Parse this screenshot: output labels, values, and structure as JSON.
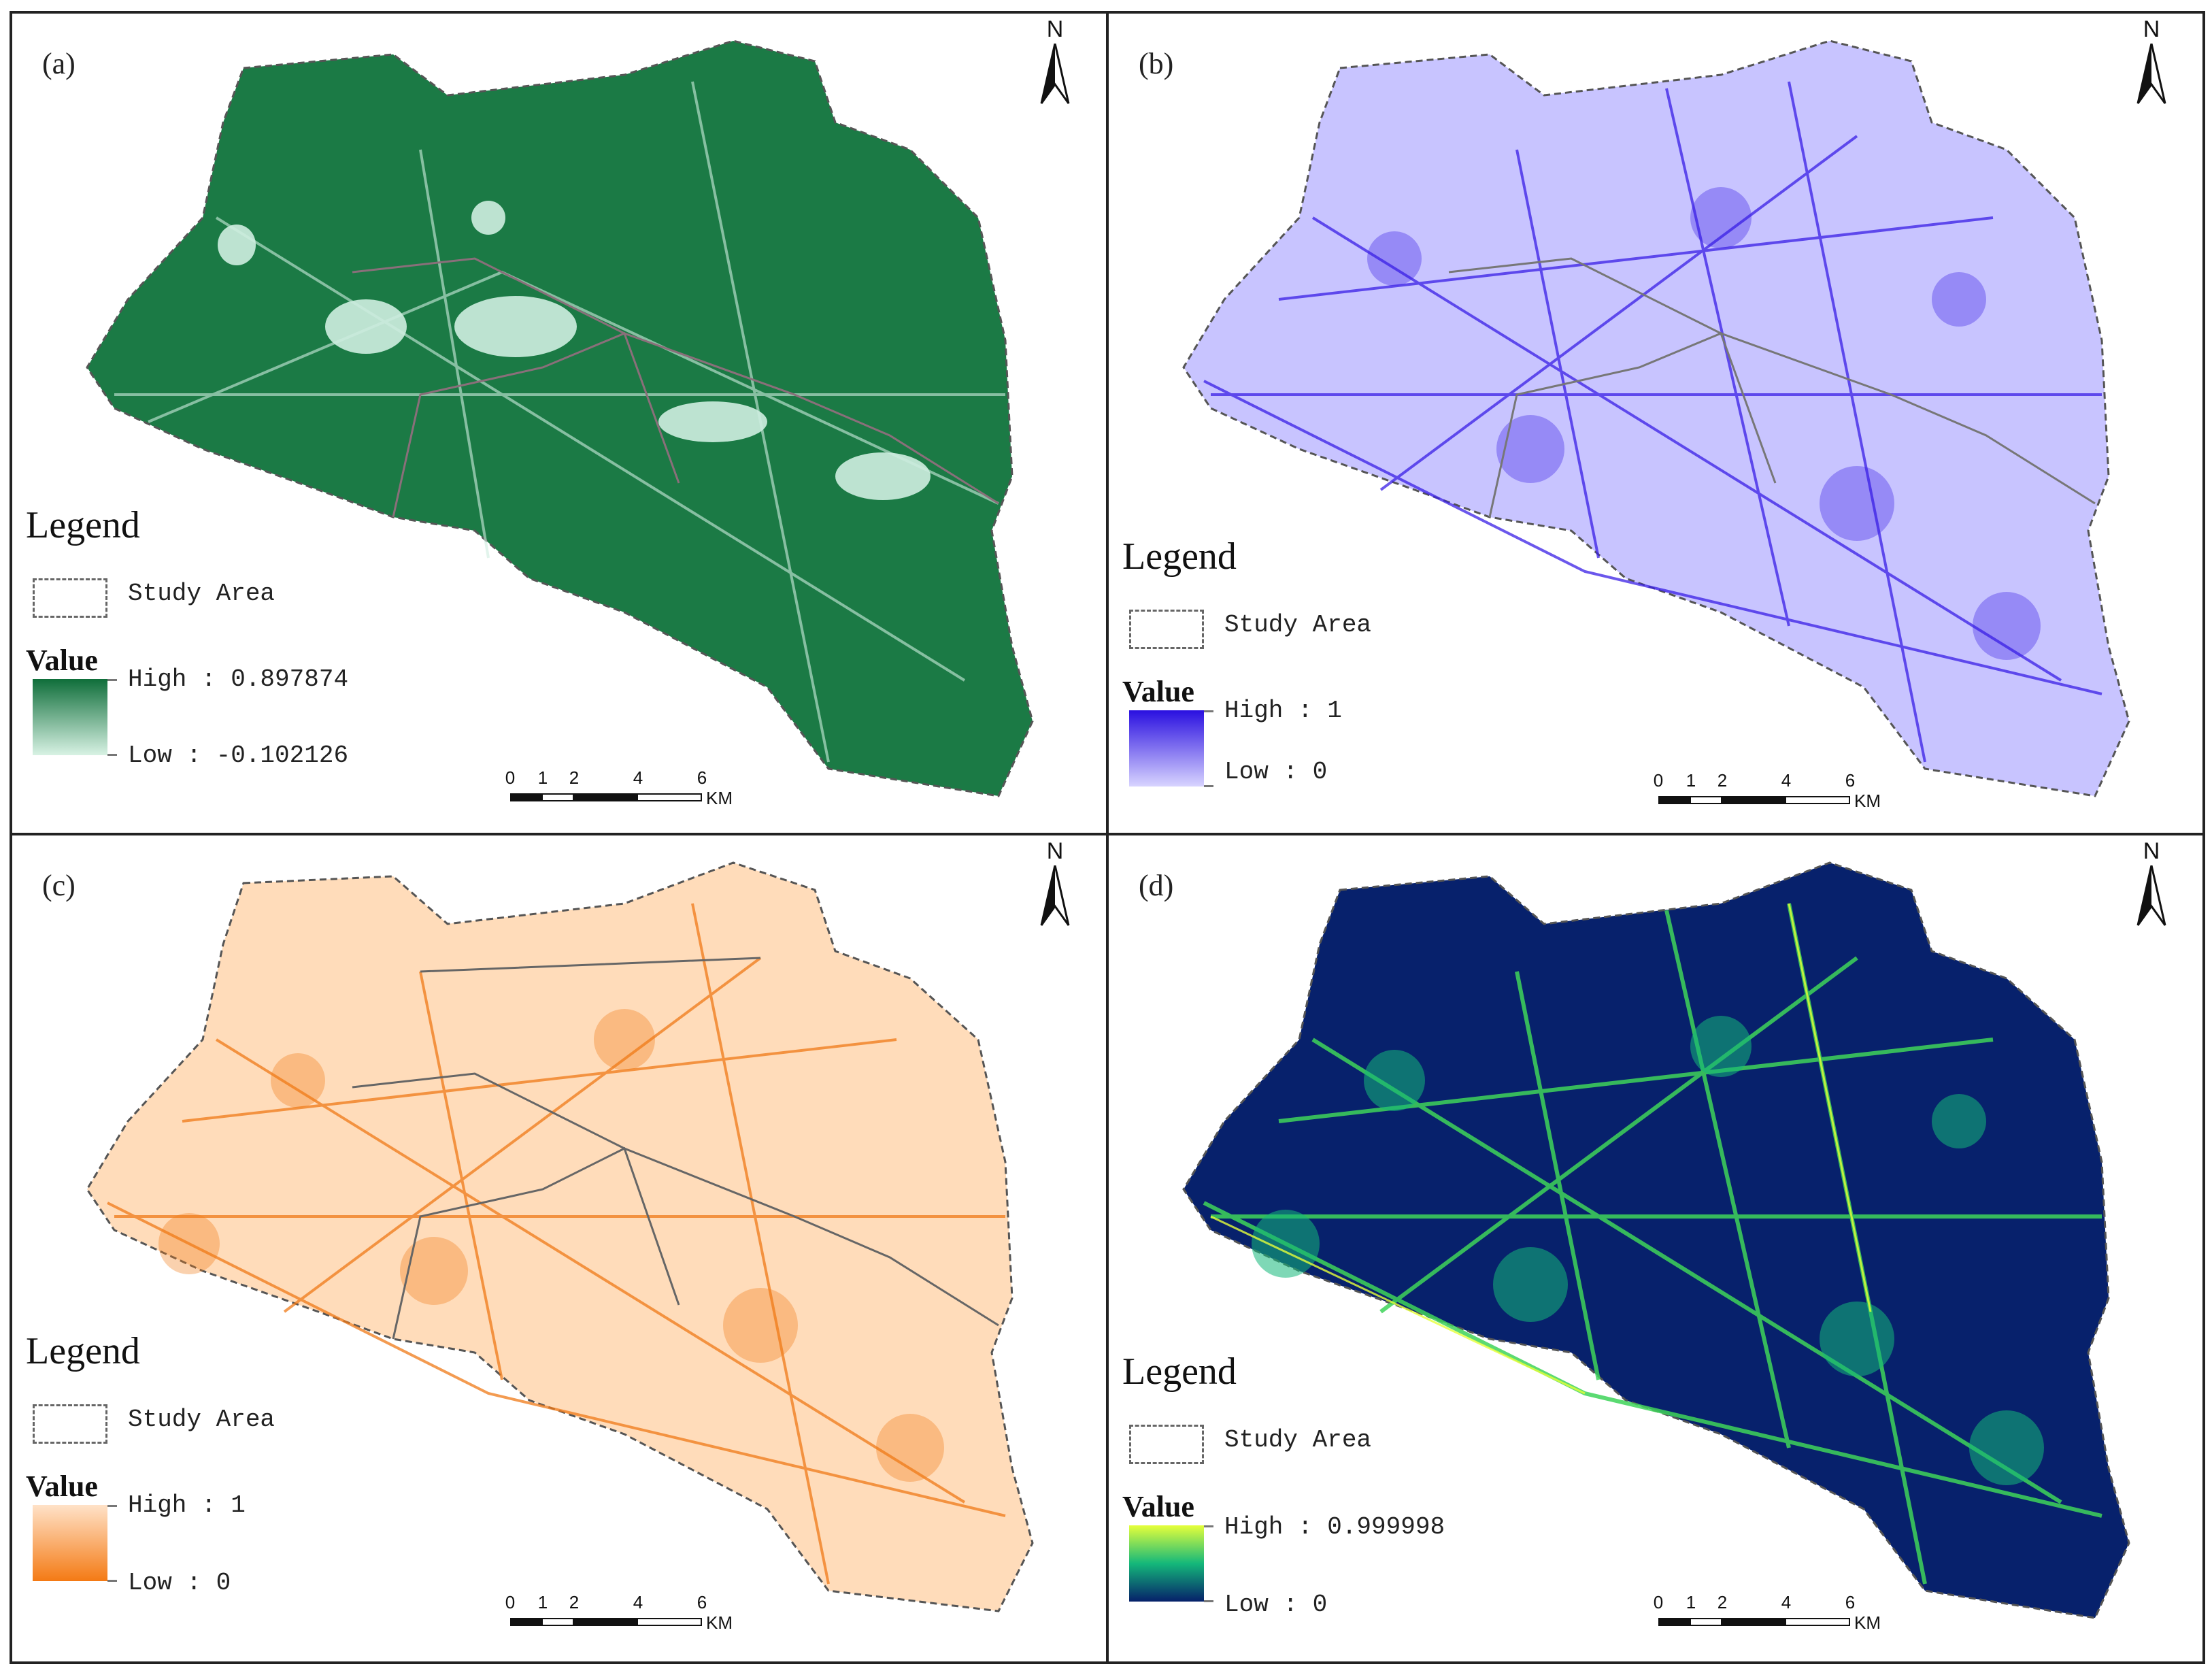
{
  "panels": [
    {
      "label": "(a)",
      "legend_title": "Legend",
      "study_area_label": "Study Area",
      "value_title": "Value",
      "high_label": "High : 0.897874",
      "low_label": "Low : -0.102126",
      "colors": {
        "high": "#0f6e3a",
        "low": "#d8f2e4",
        "base": "#1b7a45",
        "accent": "#cfeee0"
      }
    },
    {
      "label": "(b)",
      "legend_title": "Legend",
      "study_area_label": "Study Area",
      "value_title": "Value",
      "high_label": "High : 1",
      "low_label": "Low : 0",
      "colors": {
        "high": "#2a10e0",
        "low": "#d8d4ff",
        "base": "#c8c4ff",
        "accent": "#3a1fe6"
      }
    },
    {
      "label": "(c)",
      "legend_title": "Legend",
      "study_area_label": "Study Area",
      "value_title": "Value",
      "high_label": "High : 1",
      "low_label": "Low : 0",
      "colors": {
        "high": "#ffe2c8",
        "low": "#f47a14",
        "base": "#ffdcba",
        "accent": "#f07a18"
      }
    },
    {
      "label": "(d)",
      "legend_title": "Legend",
      "study_area_label": "Study Area",
      "value_title": "Value",
      "high_label": "High : 0.999998",
      "low_label": "Low : 0",
      "colors": {
        "high": "#e6ff3a",
        "mid": "#14b87a",
        "low": "#06206a",
        "base": "#07216c",
        "accent": "#3fd45a"
      }
    }
  ],
  "north_label": "N",
  "scale_bar": {
    "ticks": [
      "0",
      "1",
      "2",
      "4",
      "6"
    ],
    "unit": "KM"
  }
}
